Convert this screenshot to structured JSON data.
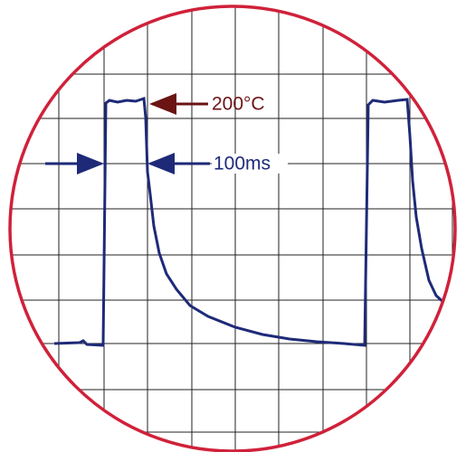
{
  "annotations": [
    {
      "label": "200°C"
    },
    {
      "label": "100ms"
    }
  ]
}
